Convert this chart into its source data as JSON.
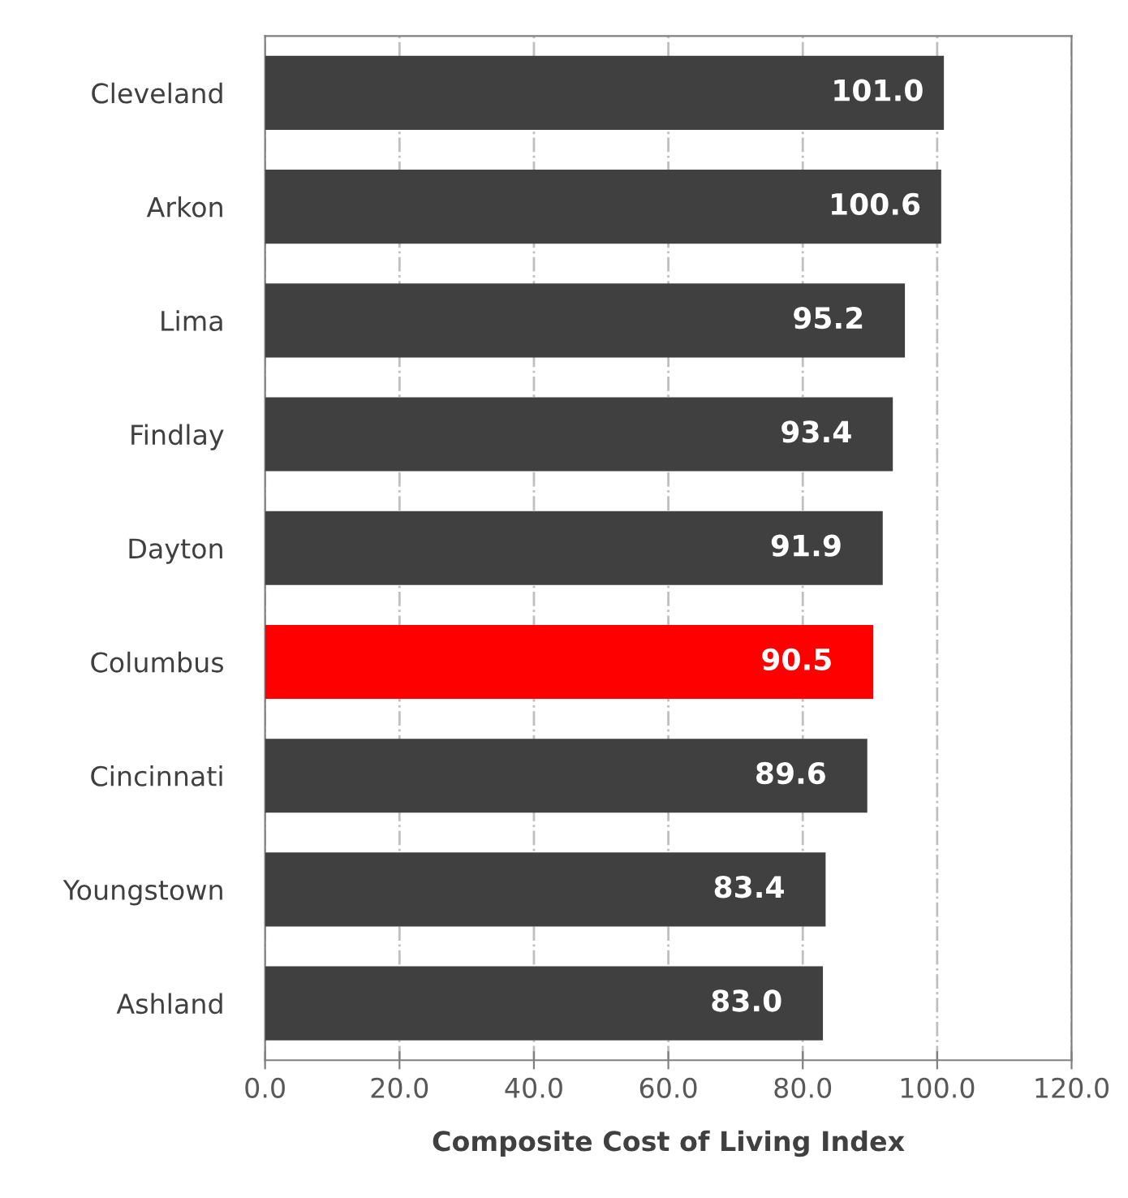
{
  "chart_data": {
    "type": "bar",
    "orientation": "horizontal",
    "xlabel": "Composite Cost of Living Index",
    "categories": [
      "Cleveland",
      "Arkon",
      "Lima",
      "Findlay",
      "Dayton",
      "Columbus",
      "Cincinnati",
      "Youngstown",
      "Ashland"
    ],
    "values": [
      101.0,
      100.6,
      95.2,
      93.4,
      91.9,
      90.5,
      89.6,
      83.4,
      83.0
    ],
    "colors": [
      "#404040",
      "#404040",
      "#404040",
      "#404040",
      "#404040",
      "#ff0000",
      "#404040",
      "#404040",
      "#404040"
    ],
    "value_labels": [
      "101.0",
      "100.6",
      "95.2",
      "93.4",
      "91.9",
      "90.5",
      "89.6",
      "83.4",
      "83.0"
    ],
    "xlim": [
      0,
      120
    ],
    "xticks": [
      {
        "value": 0,
        "label": "0.0"
      },
      {
        "value": 20,
        "label": "20.0"
      },
      {
        "value": 40,
        "label": "40.0"
      },
      {
        "value": 60,
        "label": "60.0"
      },
      {
        "value": 80,
        "label": "80.0"
      },
      {
        "value": 100,
        "label": "100.0"
      },
      {
        "value": 120,
        "label": "120.0"
      }
    ],
    "grid": "x"
  }
}
